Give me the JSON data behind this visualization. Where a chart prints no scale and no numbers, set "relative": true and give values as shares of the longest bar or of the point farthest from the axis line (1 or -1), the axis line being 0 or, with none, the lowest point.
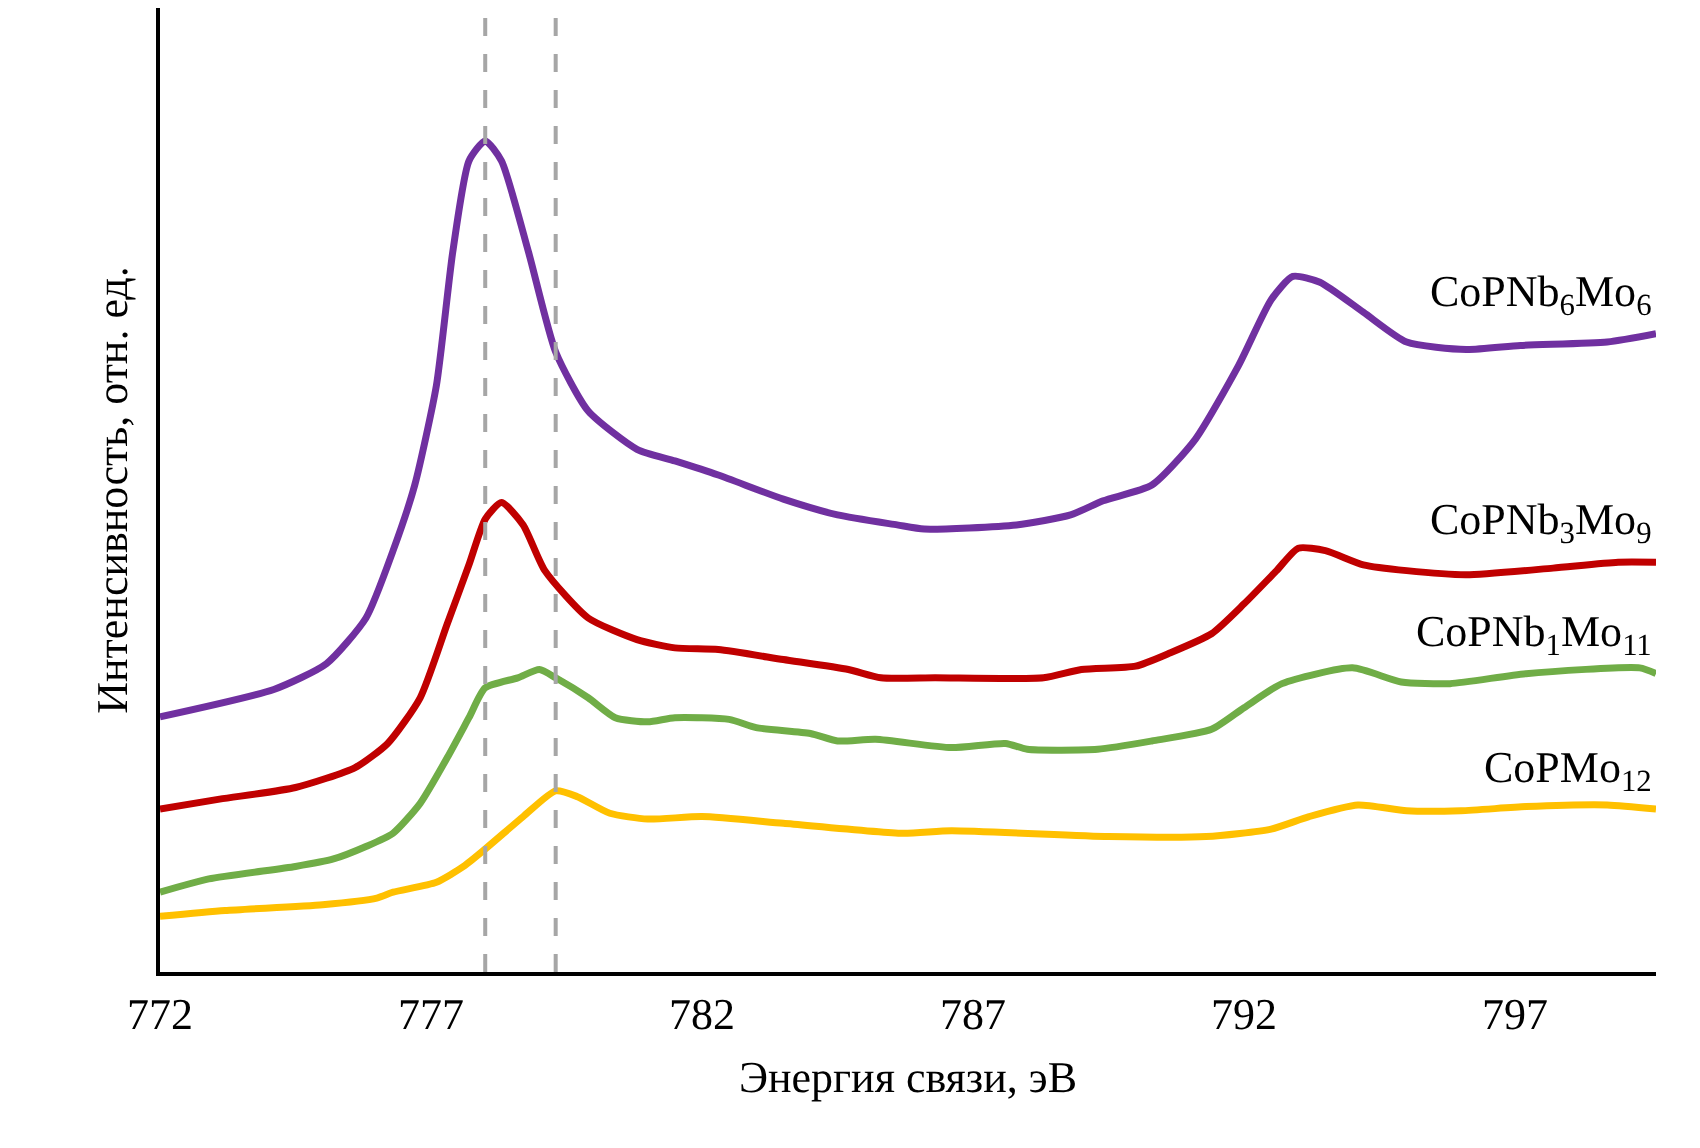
{
  "chart_data": {
    "type": "line",
    "relative": true,
    "xlabel": "Энергия связи, эВ",
    "ylabel": "Интенсивность, отн. ед.",
    "xlim": [
      772,
      799.6
    ],
    "xticks": [
      772,
      777,
      782,
      787,
      792,
      797
    ],
    "legend": false,
    "marker": "none",
    "line_style": "solid",
    "ref_lines": [
      {
        "axis": "x",
        "value": 778.0,
        "color": "#a6a6a6",
        "line_style": "dashed"
      },
      {
        "axis": "x",
        "value": 779.3,
        "color": "#a6a6a6",
        "line_style": "dashed"
      }
    ],
    "series": [
      {
        "name": "CoPNb$_{6}$Mo$_{6}$",
        "color": "#7030a0",
        "x": [
          772,
          774.1,
          775.07,
          775.8,
          776.3,
          776.7,
          777.1,
          777.4,
          777.7,
          778.0,
          778.3,
          778.8,
          779.3,
          779.9,
          780.8,
          781.5,
          782.3,
          783.5,
          784.5,
          785.6,
          786.1,
          787.8,
          788.8,
          789.4,
          790.3,
          791.1,
          791.9,
          792.5,
          792.9,
          793.4,
          794.2,
          795.0,
          796.1,
          797.1,
          798.7,
          799.6
        ],
        "values": [
          0.307,
          0.34,
          0.371,
          0.426,
          0.507,
          0.586,
          0.706,
          0.866,
          0.976,
          1.0,
          0.976,
          0.866,
          0.746,
          0.675,
          0.629,
          0.615,
          0.598,
          0.569,
          0.55,
          0.538,
          0.533,
          0.538,
          0.55,
          0.567,
          0.586,
          0.641,
          0.73,
          0.809,
          0.837,
          0.83,
          0.794,
          0.758,
          0.749,
          0.754,
          0.758,
          0.768
        ]
      },
      {
        "name": "CoPNb$_{3}$Mo$_{9}$",
        "color": "#c00000",
        "x": [
          772,
          773.1,
          774.5,
          775.6,
          776.2,
          776.8,
          777.3,
          777.7,
          778.0,
          778.3,
          778.7,
          779.1,
          779.9,
          780.8,
          781.5,
          782.3,
          783.5,
          784.7,
          785.3,
          786.3,
          788.3,
          789.0,
          790.0,
          790.6,
          791.4,
          792.0,
          792.6,
          793.0,
          793.5,
          794.2,
          795.0,
          796.1,
          797.7,
          798.9,
          799.6
        ],
        "values": [
          0.196,
          0.208,
          0.222,
          0.246,
          0.275,
          0.33,
          0.419,
          0.49,
          0.545,
          0.565,
          0.538,
          0.483,
          0.426,
          0.4,
          0.39,
          0.388,
          0.376,
          0.364,
          0.354,
          0.354,
          0.354,
          0.364,
          0.368,
          0.383,
          0.407,
          0.443,
          0.483,
          0.51,
          0.507,
          0.49,
          0.483,
          0.478,
          0.486,
          0.493,
          0.493
        ]
      },
      {
        "name": "CoPNb$_{1}$Mo$_{11}$",
        "color": "#70ad47",
        "x": [
          772,
          772.9,
          774.5,
          775.2,
          775.8,
          776.3,
          776.8,
          777.3,
          777.7,
          778.0,
          778.6,
          779.0,
          779.3,
          779.9,
          780.4,
          781.0,
          781.5,
          782.5,
          783.0,
          784.0,
          784.5,
          785.2,
          786.6,
          787.6,
          788.0,
          789.3,
          790.3,
          791.4,
          792.0,
          792.7,
          794.0,
          794.9,
          795.8,
          797.2,
          799.3,
          799.6
        ],
        "values": [
          0.096,
          0.112,
          0.127,
          0.136,
          0.151,
          0.167,
          0.203,
          0.258,
          0.306,
          0.342,
          0.354,
          0.364,
          0.354,
          0.33,
          0.306,
          0.301,
          0.306,
          0.304,
          0.294,
          0.287,
          0.278,
          0.28,
          0.27,
          0.275,
          0.268,
          0.268,
          0.278,
          0.292,
          0.318,
          0.347,
          0.366,
          0.349,
          0.347,
          0.359,
          0.366,
          0.359
        ]
      },
      {
        "name": "CoPMo$_{12}$",
        "color": "#ffc000",
        "x": [
          772,
          773.2,
          775.0,
          776.0,
          776.3,
          777.1,
          777.6,
          778.0,
          778.7,
          779.3,
          779.7,
          780.3,
          781.0,
          782.0,
          783.5,
          785.7,
          786.6,
          789.5,
          791.3,
          792.5,
          793.2,
          794.1,
          795.0,
          796.0,
          797.2,
          798.7,
          799.6
        ],
        "values": [
          0.067,
          0.074,
          0.081,
          0.089,
          0.096,
          0.108,
          0.127,
          0.148,
          0.187,
          0.218,
          0.211,
          0.191,
          0.184,
          0.187,
          0.179,
          0.167,
          0.17,
          0.163,
          0.163,
          0.172,
          0.187,
          0.201,
          0.194,
          0.194,
          0.199,
          0.201,
          0.196
        ]
      }
    ]
  }
}
